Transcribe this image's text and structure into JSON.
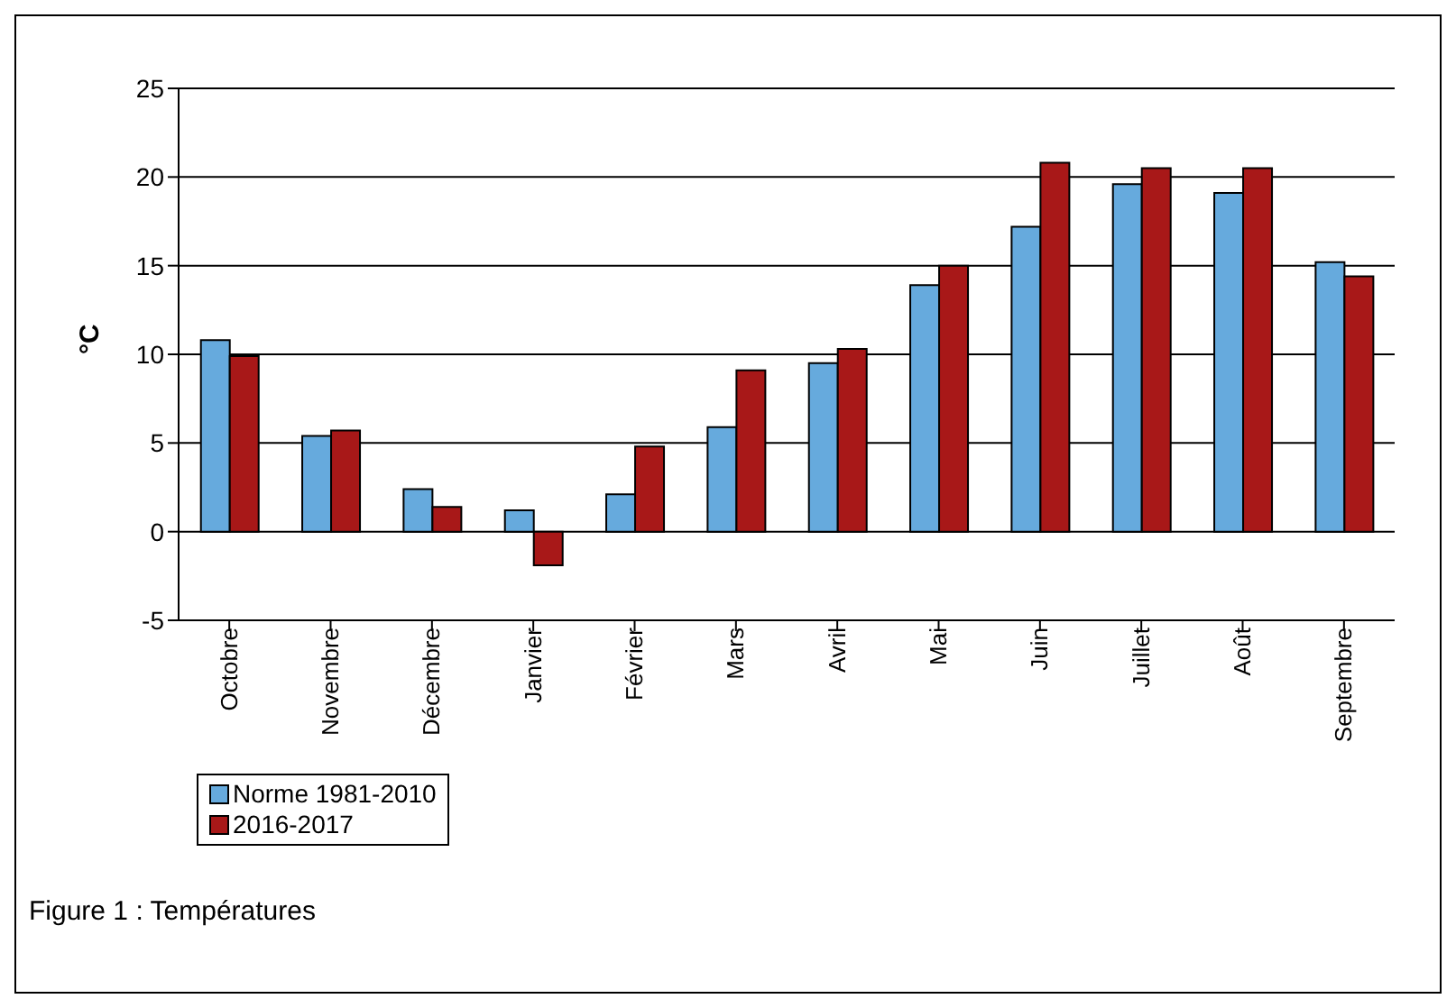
{
  "chart_data": {
    "type": "bar",
    "ylabel": "°C",
    "categories": [
      "Octobre",
      "Novembre",
      "Décembre",
      "Janvier",
      "Février",
      "Mars",
      "Avril",
      "Mai",
      "Juin",
      "Juillet",
      "Août",
      "Septembre"
    ],
    "series": [
      {
        "name": "Norme 1981-2010",
        "color": "#66aadd",
        "values": [
          10.8,
          5.4,
          2.4,
          1.2,
          2.1,
          5.9,
          9.5,
          13.9,
          17.2,
          19.6,
          19.1,
          15.2
        ]
      },
      {
        "name": "2016-2017",
        "color": "#a81818",
        "values": [
          9.9,
          5.7,
          1.4,
          -1.9,
          4.8,
          9.1,
          10.3,
          15.0,
          20.8,
          20.5,
          20.5,
          14.4
        ]
      }
    ],
    "ylim": [
      -5,
      25
    ],
    "yticks": [
      -5,
      0,
      5,
      10,
      15,
      20,
      25
    ],
    "grid": "y",
    "legend": "bottom",
    "annotations": [
      "Figure 1 : Températures"
    ]
  }
}
